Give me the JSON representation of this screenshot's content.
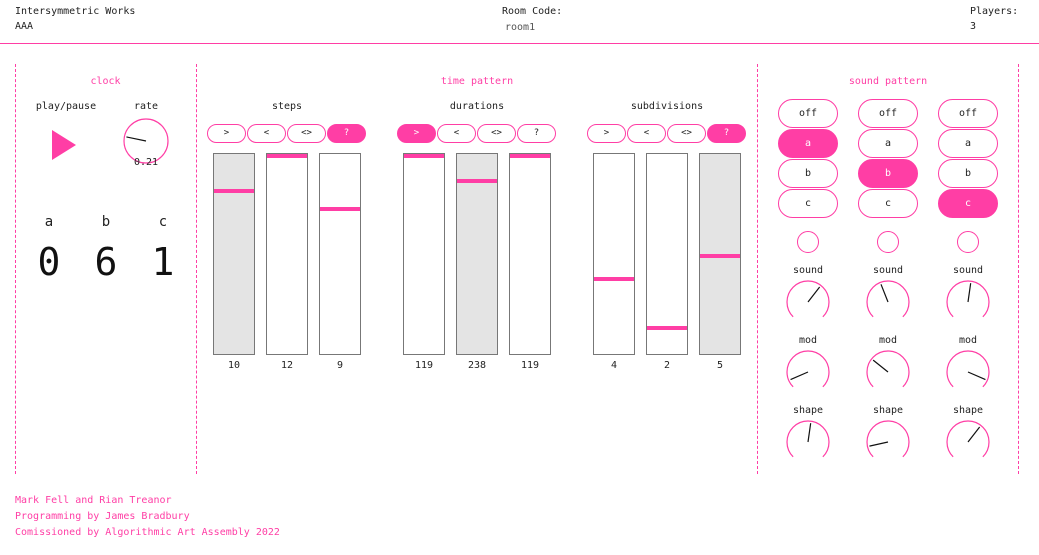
{
  "header": {
    "app_title": "Intersymmetric Works",
    "user_name": "AAA",
    "room_code_label": "Room Code:",
    "room_code_value": "room1",
    "players_label": "Players:",
    "players_value": "3"
  },
  "clock": {
    "title": "clock",
    "play_pause_label": "play/pause",
    "rate_label": "rate",
    "rate_value": "0.21",
    "rate_level": 0.21,
    "counters": [
      {
        "label": "a",
        "value": "0"
      },
      {
        "label": "b",
        "value": "6"
      },
      {
        "label": "c",
        "value": "1"
      }
    ]
  },
  "time_pattern": {
    "title": "time pattern",
    "groups": [
      {
        "label": "steps",
        "buttons": [
          {
            "label": ">",
            "active": false
          },
          {
            "label": "<",
            "active": false
          },
          {
            "label": "<>",
            "active": false
          },
          {
            "label": "?",
            "active": true
          }
        ],
        "sliders": [
          {
            "value": "10",
            "level": 0.82,
            "grey": true
          },
          {
            "value": "12",
            "level": 1.0,
            "grey": false
          },
          {
            "value": "9",
            "level": 0.73,
            "grey": false
          }
        ]
      },
      {
        "label": "durations",
        "buttons": [
          {
            "label": ">",
            "active": true
          },
          {
            "label": "<",
            "active": false
          },
          {
            "label": "<>",
            "active": false
          },
          {
            "label": "?",
            "active": false
          }
        ],
        "sliders": [
          {
            "value": "119",
            "level": 1.0,
            "grey": false
          },
          {
            "value": "238",
            "level": 0.87,
            "grey": true
          },
          {
            "value": "119",
            "level": 1.0,
            "grey": false
          }
        ]
      },
      {
        "label": "subdivisions",
        "buttons": [
          {
            "label": ">",
            "active": false
          },
          {
            "label": "<",
            "active": false
          },
          {
            "label": "<>",
            "active": false
          },
          {
            "label": "?",
            "active": true
          }
        ],
        "sliders": [
          {
            "value": "4",
            "level": 0.37,
            "grey": false
          },
          {
            "value": "2",
            "level": 0.12,
            "grey": false
          },
          {
            "value": "5",
            "level": 0.49,
            "grey": true
          }
        ]
      }
    ]
  },
  "sound_pattern": {
    "title": "sound pattern",
    "columns": [
      {
        "options": [
          "off",
          "a",
          "b",
          "c"
        ],
        "selected": "a",
        "knobs": [
          {
            "label": "sound",
            "level": 0.64
          },
          {
            "label": "mod",
            "level": 0.08
          },
          {
            "label": "shape",
            "level": 0.53
          }
        ]
      },
      {
        "options": [
          "off",
          "a",
          "b",
          "c"
        ],
        "selected": "b",
        "knobs": [
          {
            "label": "sound",
            "level": 0.42
          },
          {
            "label": "mod",
            "level": 0.31
          },
          {
            "label": "shape",
            "level": 0.12
          }
        ]
      },
      {
        "options": [
          "off",
          "a",
          "b",
          "c"
        ],
        "selected": "c",
        "knobs": [
          {
            "label": "sound",
            "level": 0.53
          },
          {
            "label": "mod",
            "level": 0.92
          },
          {
            "label": "shape",
            "level": 0.64
          }
        ]
      }
    ]
  },
  "credits": [
    "Mark Fell and Rian Treanor",
    "Programming by James Bradbury",
    "Comissioned by Algorithmic Art Assembly 2022"
  ],
  "colors": {
    "accent": "#ff3ea5",
    "slider_grey": "#e4e4e4"
  }
}
